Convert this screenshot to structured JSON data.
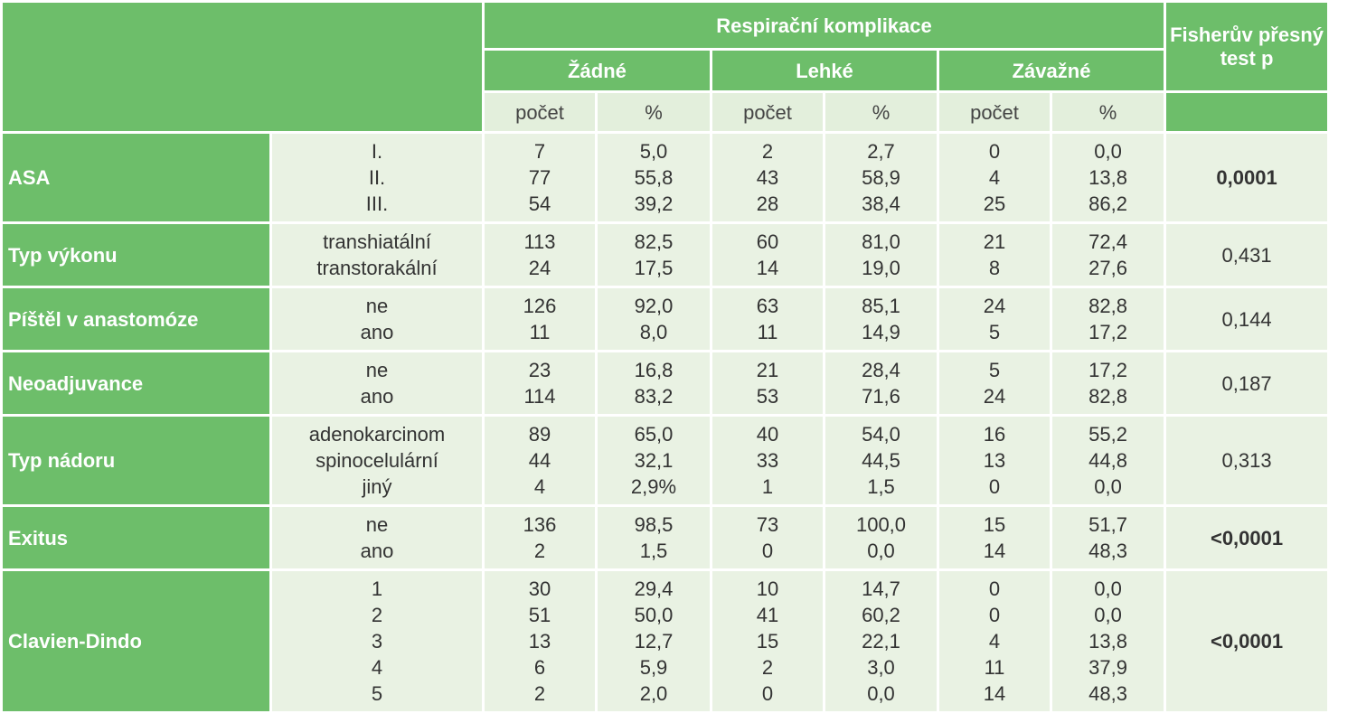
{
  "header": {
    "group": "Respirační komplikace",
    "p_header": "Fisherův přesný test p",
    "categories": [
      "Žádné",
      "Lehké",
      "Závažné"
    ],
    "subcolumns": [
      "počet",
      "%",
      "počet",
      "%",
      "počet",
      "%"
    ]
  },
  "rows": [
    {
      "label": "ASA",
      "levels": [
        "I.",
        "II.",
        "III."
      ],
      "columns": [
        [
          "7",
          "77",
          "54"
        ],
        [
          "5,0",
          "55,8",
          "39,2"
        ],
        [
          "2",
          "43",
          "28"
        ],
        [
          "2,7",
          "58,9",
          "38,4"
        ],
        [
          "0",
          "4",
          "25"
        ],
        [
          "0,0",
          "13,8",
          "86,2"
        ]
      ],
      "p": "0,0001",
      "p_bold": true
    },
    {
      "label": "Typ výkonu",
      "levels": [
        "transhiatální",
        "transtorakální"
      ],
      "columns": [
        [
          "113",
          "24"
        ],
        [
          "82,5",
          "17,5"
        ],
        [
          "60",
          "14"
        ],
        [
          "81,0",
          "19,0"
        ],
        [
          "21",
          "8"
        ],
        [
          "72,4",
          "27,6"
        ]
      ],
      "p": "0,431",
      "p_bold": false
    },
    {
      "label": "Píštěl v anastomóze",
      "levels": [
        "ne",
        "ano"
      ],
      "columns": [
        [
          "126",
          "11"
        ],
        [
          "92,0",
          "8,0"
        ],
        [
          "63",
          "11"
        ],
        [
          "85,1",
          "14,9"
        ],
        [
          "24",
          "5"
        ],
        [
          "82,8",
          "17,2"
        ]
      ],
      "p": "0,144",
      "p_bold": false
    },
    {
      "label": "Neoadjuvance",
      "levels": [
        "ne",
        "ano"
      ],
      "columns": [
        [
          "23",
          "114"
        ],
        [
          "16,8",
          "83,2"
        ],
        [
          "21",
          "53"
        ],
        [
          "28,4",
          "71,6"
        ],
        [
          "5",
          "24"
        ],
        [
          "17,2",
          "82,8"
        ]
      ],
      "p": "0,187",
      "p_bold": false
    },
    {
      "label": "Typ nádoru",
      "levels": [
        "adenokarcinom",
        "spinocelulární",
        "jiný"
      ],
      "columns": [
        [
          "89",
          "44",
          "4"
        ],
        [
          "65,0",
          "32,1",
          "2,9%"
        ],
        [
          "40",
          "33",
          "1"
        ],
        [
          "54,0",
          "44,5",
          "1,5"
        ],
        [
          "16",
          "13",
          "0"
        ],
        [
          "55,2",
          "44,8",
          "0,0"
        ]
      ],
      "p": "0,313",
      "p_bold": false
    },
    {
      "label": "Exitus",
      "levels": [
        "ne",
        "ano"
      ],
      "columns": [
        [
          "136",
          "2"
        ],
        [
          "98,5",
          "1,5"
        ],
        [
          "73",
          "0"
        ],
        [
          "100,0",
          "0,0"
        ],
        [
          "15",
          "14"
        ],
        [
          "51,7",
          "48,3"
        ]
      ],
      "p": "<0,0001",
      "p_bold": true
    },
    {
      "label": "Clavien-Dindo",
      "levels": [
        "1",
        "2",
        "3",
        "4",
        "5"
      ],
      "columns": [
        [
          "30",
          "51",
          "13",
          "6",
          "2"
        ],
        [
          "29,4",
          "50,0",
          "12,7",
          "5,9",
          "2,0"
        ],
        [
          "10",
          "41",
          "15",
          "2",
          "0"
        ],
        [
          "14,7",
          "60,2",
          "22,1",
          "3,0",
          "0,0"
        ],
        [
          "0",
          "0",
          "4",
          "11",
          "14"
        ],
        [
          "0,0",
          "0,0",
          "13,8",
          "37,9",
          "48,3"
        ]
      ],
      "p": "<0,0001",
      "p_bold": true
    }
  ]
}
